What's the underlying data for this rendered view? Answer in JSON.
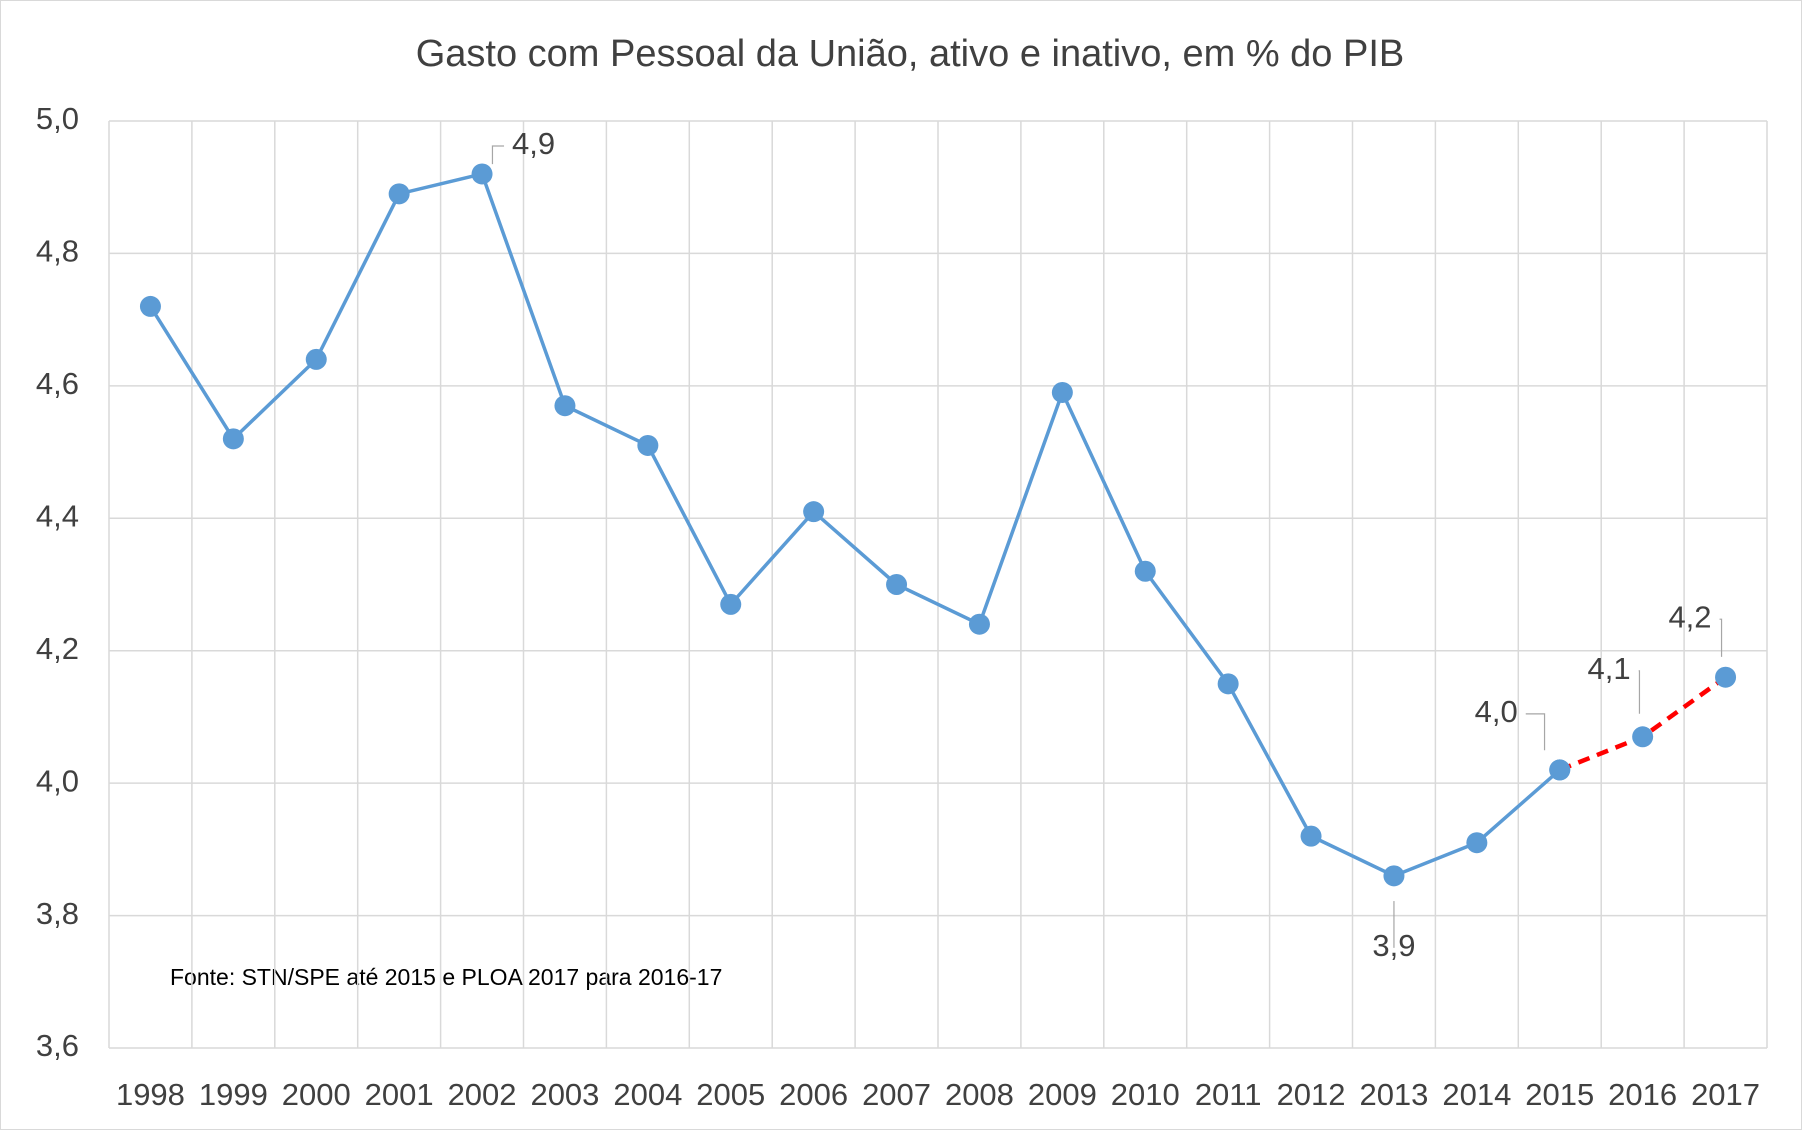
{
  "chart_data": {
    "type": "line",
    "title": "Gasto com Pessoal da União, ativo e inativo, em % do PIB",
    "annotation": "Fonte: STN/SPE até 2015 e PLOA 2017 para 2016-17",
    "categories": [
      "1998",
      "1999",
      "2000",
      "2001",
      "2002",
      "2003",
      "2004",
      "2005",
      "2006",
      "2007",
      "2008",
      "2009",
      "2010",
      "2011",
      "2012",
      "2013",
      "2014",
      "2015",
      "2016",
      "2017"
    ],
    "series": [
      {
        "color": "#5b9bd5",
        "marker_color": "#5b9bd5",
        "dashed": false,
        "values": [
          4.72,
          4.52,
          4.64,
          4.89,
          4.92,
          4.57,
          4.51,
          4.27,
          4.41,
          4.3,
          4.24,
          4.59,
          4.32,
          4.15,
          3.92,
          3.86,
          3.91,
          4.02,
          null,
          null
        ],
        "value_labels": [
          null,
          null,
          null,
          null,
          "4,9",
          null,
          null,
          null,
          null,
          null,
          null,
          null,
          null,
          null,
          null,
          "3,9",
          null,
          "4,0",
          null,
          null
        ]
      },
      {
        "color": "#ff0000",
        "marker_color": "#5b9bd5",
        "dashed": true,
        "values": [
          null,
          null,
          null,
          null,
          null,
          null,
          null,
          null,
          null,
          null,
          null,
          null,
          null,
          null,
          null,
          null,
          null,
          4.02,
          4.07,
          4.16
        ],
        "value_labels": [
          null,
          null,
          null,
          null,
          null,
          null,
          null,
          null,
          null,
          null,
          null,
          null,
          null,
          null,
          null,
          null,
          null,
          null,
          "4,1",
          "4,2"
        ]
      }
    ],
    "ylim": [
      3.6,
      5.0
    ],
    "yticks": [
      {
        "value": 3.6,
        "label": "3,6"
      },
      {
        "value": 3.8,
        "label": "3,8"
      },
      {
        "value": 4.0,
        "label": "4,0"
      },
      {
        "value": 4.2,
        "label": "4,2"
      },
      {
        "value": 4.4,
        "label": "4,4"
      },
      {
        "value": 4.6,
        "label": "4,6"
      },
      {
        "value": 4.8,
        "label": "4,8"
      },
      {
        "value": 5.0,
        "label": "5,0"
      }
    ],
    "grid": true
  }
}
